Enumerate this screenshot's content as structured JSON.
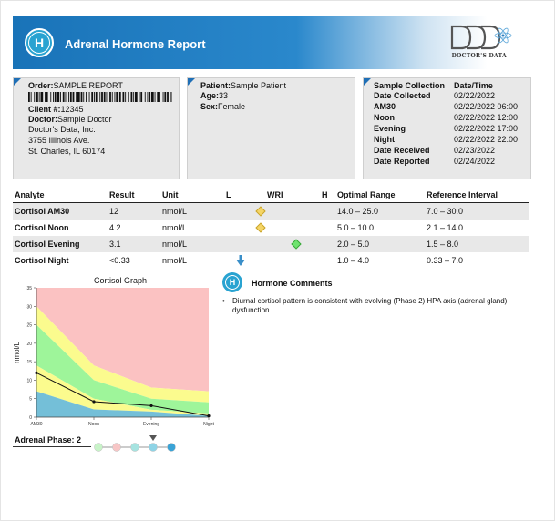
{
  "header": {
    "title": "Adrenal Hormone Report",
    "icon_letter": "H",
    "logo_text": "DOCTOR'S DATA"
  },
  "order": {
    "order_label": "Order:",
    "order_value": "SAMPLE REPORT",
    "client_label": "Client #:",
    "client_value": "12345",
    "doctor_label": "Doctor:",
    "doctor_value": "Sample Doctor",
    "address": [
      "Doctor's Data, Inc.",
      "3755 Illinois Ave.",
      "St. Charles, IL 60174"
    ]
  },
  "patient": {
    "patient_label": "Patient:",
    "patient_value": "Sample Patient",
    "age_label": "Age:",
    "age_value": "33",
    "sex_label": "Sex:",
    "sex_value": "Female"
  },
  "collection": {
    "col1_header": "Sample Collection",
    "col2_header": "Date/Time",
    "rows": [
      {
        "label": "Date Collected",
        "value": "02/22/2022"
      },
      {
        "label": "AM30",
        "value": "02/22/2022 06:00"
      },
      {
        "label": "Noon",
        "value": "02/22/2022 12:00"
      },
      {
        "label": "Evening",
        "value": "02/22/2022 17:00"
      },
      {
        "label": "Night",
        "value": "02/22/2022 22:00"
      },
      {
        "label": "Date Received",
        "value": "02/23/2022"
      },
      {
        "label": "Date Reported",
        "value": "02/24/2022"
      }
    ]
  },
  "table": {
    "headers": [
      "Analyte",
      "Result",
      "Unit",
      "L",
      "WRI",
      "H",
      "Optimal Range",
      "Reference Interval"
    ],
    "rows": [
      {
        "analyte": "Cortisol AM30",
        "result": "12",
        "unit": "nmol/L",
        "optimal": "14.0 – 25.0",
        "reference": "7.0 – 30.0",
        "marker": "diamond-yellow",
        "marker_pos": 0.18
      },
      {
        "analyte": "Cortisol Noon",
        "result": "4.2",
        "unit": "nmol/L",
        "optimal": "5.0 – 10.0",
        "reference": "2.1 – 14.0",
        "marker": "diamond-yellow",
        "marker_pos": 0.18
      },
      {
        "analyte": "Cortisol Evening",
        "result": "3.1",
        "unit": "nmol/L",
        "optimal": "2.0 – 5.0",
        "reference": "1.5 – 8.0",
        "marker": "diamond-green",
        "marker_pos": 0.5
      },
      {
        "analyte": "Cortisol Night",
        "result": "<0.33",
        "unit": "nmol/L",
        "optimal": "1.0 – 4.0",
        "reference": "0.33 – 7.0",
        "marker": "arrow-down",
        "marker_pos": 0.0
      }
    ]
  },
  "chart_data": {
    "type": "area",
    "title": "Cortisol Graph",
    "ylabel": "nmol/L",
    "categories": [
      "AM30",
      "Noon",
      "Evening",
      "Night"
    ],
    "ylim": [
      0,
      35
    ],
    "yticks": [
      0,
      5,
      10,
      15,
      20,
      25,
      30,
      35
    ],
    "bands": {
      "ref_low": [
        7.0,
        2.1,
        1.5,
        0.33
      ],
      "opt_low": [
        14.0,
        5.0,
        2.0,
        1.0
      ],
      "opt_high": [
        25.0,
        10.0,
        5.0,
        4.0
      ],
      "ref_high": [
        30.0,
        14.0,
        8.0,
        7.0
      ],
      "top": [
        35,
        35,
        35,
        35
      ]
    },
    "series": [
      {
        "values": [
          12,
          4.2,
          3.1,
          0.33
        ]
      }
    ],
    "colors": {
      "below": "#74bfd8",
      "ref": "#fbfb8e",
      "optimal": "#9ef59a",
      "above": "#fbc2c2",
      "line": "#111111"
    }
  },
  "comments": {
    "title": "Hormone Comments",
    "icon_letter": "H",
    "bullet": "•",
    "text": "Diurnal cortisol pattern is consistent with evolving (Phase 2) HPA axis (adrenal gland) dysfunction."
  },
  "phase": {
    "label": "Adrenal Phase: 2",
    "value": 2,
    "count": 5,
    "colors": [
      "#c8f3c8",
      "#f7c6c6",
      "#a6e3e0",
      "#8fd4e6",
      "#3aa3d6"
    ]
  }
}
